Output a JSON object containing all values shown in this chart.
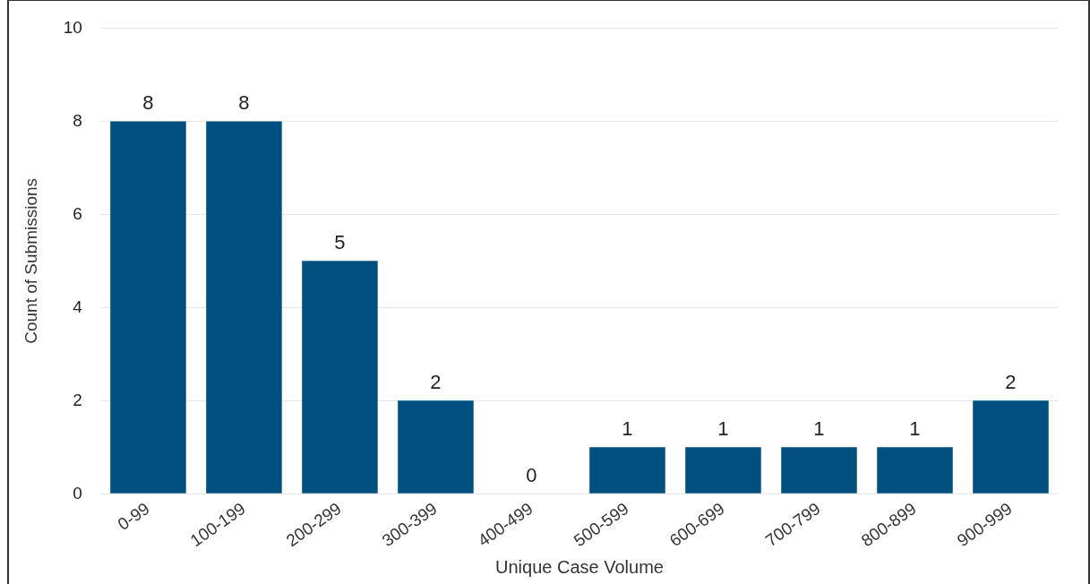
{
  "chart_data": {
    "type": "bar",
    "xlabel": "Unique Case Volume",
    "ylabel": "Count of Submissions",
    "categories": [
      "0-99",
      "100-199",
      "200-299",
      "300-399",
      "400-499",
      "500-599",
      "600-699",
      "700-799",
      "800-899",
      "900-999"
    ],
    "values": [
      8,
      8,
      5,
      2,
      0,
      1,
      1,
      1,
      1,
      2
    ],
    "color": "#00507f",
    "ylim": [
      0,
      10
    ],
    "yticks": [
      0,
      2,
      4,
      6,
      8,
      10
    ],
    "grid": "y",
    "legend": false,
    "data_labels": true
  }
}
